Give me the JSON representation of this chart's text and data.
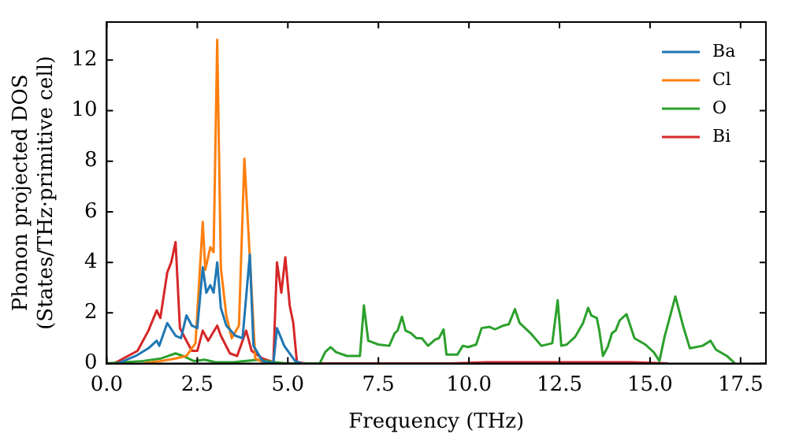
{
  "chart_data": {
    "type": "line",
    "xlabel": "Frequency (THz)",
    "ylabel": "Phonon projected DOS\n(States/THz·primitive cell)",
    "xlim": [
      0,
      18.2
    ],
    "ylim": [
      0,
      13.5
    ],
    "xticks": [
      {
        "value": 0,
        "label": "0.0"
      },
      {
        "value": 2.5,
        "label": "2.5"
      },
      {
        "value": 5,
        "label": "5.0"
      },
      {
        "value": 7.5,
        "label": "7.5"
      },
      {
        "value": 10,
        "label": "10.0"
      },
      {
        "value": 12.5,
        "label": "12.5"
      },
      {
        "value": 15,
        "label": "15.0"
      },
      {
        "value": 17.5,
        "label": "17.5"
      }
    ],
    "yticks": [
      0,
      2,
      4,
      6,
      8,
      10,
      12
    ],
    "grid": false,
    "legend": "top right",
    "marker": "none",
    "line_style": "solid",
    "series": [
      {
        "name": "Ba",
        "color": "#1f77b4",
        "x": [
          0.3,
          0.8,
          1.15,
          1.38,
          1.45,
          1.67,
          1.9,
          2.05,
          2.2,
          2.35,
          2.5,
          2.65,
          2.75,
          2.86,
          2.95,
          3.05,
          3.15,
          3.3,
          3.55,
          3.75,
          3.95,
          4.05,
          4.3,
          4.6,
          4.7,
          4.9,
          5.2,
          5.4
        ],
        "values": [
          0,
          0.3,
          0.6,
          0.9,
          0.7,
          1.6,
          1.1,
          1.0,
          1.9,
          1.5,
          1.4,
          3.8,
          2.8,
          3.1,
          2.8,
          4.0,
          2.2,
          1.5,
          1.1,
          1.0,
          4.3,
          0.7,
          0.1,
          0,
          1.4,
          0.7,
          0.1,
          0
        ]
      },
      {
        "name": "Cl",
        "color": "#ff7f0e",
        "x": [
          1.0,
          1.5,
          1.9,
          2.2,
          2.45,
          2.65,
          2.72,
          2.86,
          2.95,
          3.05,
          3.15,
          3.3,
          3.45,
          3.65,
          3.8,
          3.95,
          4.1,
          4.4
        ],
        "values": [
          0,
          0.1,
          0.2,
          0.3,
          0.8,
          5.6,
          3.7,
          4.6,
          4.4,
          12.8,
          3.8,
          1.9,
          1.0,
          1.5,
          8.1,
          4.2,
          0.2,
          0
        ]
      },
      {
        "name": "O",
        "color": "#2ca02c",
        "x": [
          0,
          1.0,
          1.5,
          1.9,
          2.1,
          2.4,
          2.7,
          3.0,
          3.5,
          3.8,
          4.2,
          4.6,
          5.0,
          5.88,
          6.03,
          6.18,
          6.33,
          6.63,
          6.99,
          7.1,
          7.22,
          7.5,
          7.8,
          7.95,
          8.03,
          8.15,
          8.25,
          8.4,
          8.55,
          8.7,
          8.87,
          9.07,
          9.17,
          9.3,
          9.38,
          9.68,
          9.83,
          9.98,
          10.2,
          10.35,
          10.57,
          10.72,
          10.95,
          11.1,
          11.27,
          11.4,
          11.7,
          12.0,
          12.3,
          12.45,
          12.55,
          12.7,
          12.93,
          13.15,
          13.29,
          13.38,
          13.53,
          13.6,
          13.7,
          13.83,
          13.95,
          14.05,
          14.16,
          14.35,
          14.57,
          14.87,
          15.1,
          15.26,
          15.4,
          15.7,
          15.92,
          16.1,
          16.45,
          16.67,
          16.82,
          17.12,
          17.35
        ],
        "values": [
          0,
          0.1,
          0.2,
          0.4,
          0.3,
          0.1,
          0.15,
          0.05,
          0.05,
          0.1,
          0.15,
          0.05,
          0,
          0,
          0.45,
          0.65,
          0.45,
          0.3,
          0.3,
          2.3,
          0.9,
          0.75,
          0.7,
          1.2,
          1.3,
          1.85,
          1.3,
          1.2,
          1.0,
          1.0,
          0.7,
          0.95,
          1.0,
          1.35,
          0.35,
          0.35,
          0.7,
          0.65,
          0.75,
          1.4,
          1.45,
          1.35,
          1.5,
          1.55,
          2.15,
          1.6,
          1.2,
          0.7,
          0.8,
          2.5,
          0.7,
          0.75,
          1.05,
          1.6,
          2.2,
          1.9,
          1.8,
          1.3,
          0.3,
          0.65,
          1.2,
          1.3,
          1.7,
          1.95,
          1.0,
          0.75,
          0.45,
          0.1,
          1.05,
          2.65,
          1.45,
          0.6,
          0.7,
          0.9,
          0.55,
          0.3,
          0
        ]
      },
      {
        "name": "Bi",
        "color": "#d62728",
        "x": [
          0.2,
          0.85,
          1.15,
          1.38,
          1.48,
          1.67,
          1.78,
          1.9,
          2.02,
          2.2,
          2.35,
          2.5,
          2.65,
          2.8,
          3.05,
          3.15,
          3.4,
          3.6,
          3.85,
          4.0,
          4.3,
          4.6,
          4.7,
          4.82,
          4.93,
          5.05,
          5.15,
          5.25,
          5.5,
          9.5,
          10.5,
          12.0,
          13.0,
          14.5,
          15.5
        ],
        "values": [
          0,
          0.5,
          1.3,
          2.1,
          1.8,
          3.6,
          4.0,
          4.8,
          1.4,
          0.9,
          0.5,
          0.5,
          1.3,
          0.9,
          1.5,
          1.1,
          0.4,
          0.3,
          1.3,
          0.5,
          0.2,
          0.05,
          4.0,
          2.8,
          4.2,
          2.3,
          1.6,
          0.05,
          0,
          0,
          0.05,
          0.05,
          0.05,
          0.05,
          0
        ]
      }
    ]
  }
}
